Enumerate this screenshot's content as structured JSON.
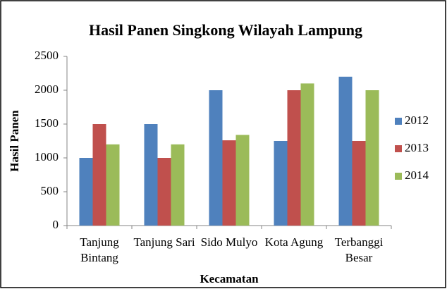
{
  "chart_data": {
    "type": "bar",
    "title": "Hasil Panen Singkong Wilayah Lampung",
    "x_label": "Kecamatan",
    "y_label": "Hasil Panen",
    "categories": [
      "Tanjung Bintang",
      "Tanjung Sari",
      "Sido Mulyo",
      "Kota Agung",
      "Terbanggi Besar"
    ],
    "series": [
      {
        "name": "2012",
        "color": "#4f81bd",
        "values": [
          1000,
          1500,
          2000,
          1250,
          2200
        ]
      },
      {
        "name": "2013",
        "color": "#c0504d",
        "values": [
          1500,
          1000,
          1260,
          2000,
          1250
        ]
      },
      {
        "name": "2014",
        "color": "#9bbb59",
        "values": [
          1200,
          1200,
          1340,
          2100,
          2000
        ]
      }
    ],
    "ylim": [
      0,
      2500
    ],
    "yticks": [
      0,
      500,
      1000,
      1500,
      2000,
      2500
    ],
    "grid": false,
    "legend": "right"
  }
}
